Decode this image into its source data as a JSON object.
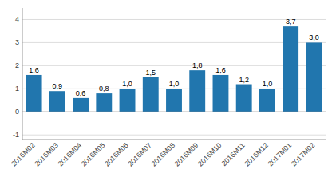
{
  "chart_data": {
    "type": "bar",
    "categories": [
      "2016M02",
      "2016M03",
      "2016M04",
      "2016M05",
      "2016M06",
      "2016M07",
      "2016M08",
      "2016M09",
      "2016M10",
      "2016M11",
      "2016M12",
      "2017M01",
      "2017M02"
    ],
    "values": [
      1.6,
      0.9,
      0.6,
      0.8,
      1.0,
      1.5,
      1.0,
      1.8,
      1.6,
      1.2,
      1.0,
      3.7,
      3.0
    ],
    "value_labels": [
      "1,6",
      "0,9",
      "0,6",
      "0,8",
      "1,0",
      "1,5",
      "1,0",
      "1,8",
      "1,6",
      "1,2",
      "1,0",
      "3,7",
      "3,0"
    ],
    "color": "#2176AE",
    "ylim": [
      -1.2,
      4.5
    ],
    "yticks": [
      -1,
      0,
      1,
      2,
      3,
      4
    ],
    "grid": true,
    "data_labels": true
  }
}
